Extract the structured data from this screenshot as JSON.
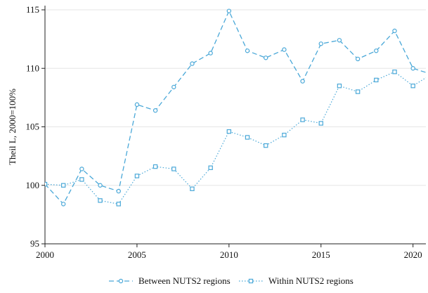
{
  "chart_data": {
    "type": "line",
    "title": "",
    "xlabel": "",
    "ylabel": "Theil L, 2000=100%",
    "xlim": [
      2000,
      2020.7
    ],
    "ylim": [
      95,
      115
    ],
    "x_ticks": [
      2000,
      2005,
      2010,
      2015,
      2020
    ],
    "x_tick_labels": [
      "2000",
      "2005",
      "2010",
      "2015",
      "2020"
    ],
    "y_ticks": [
      95,
      100,
      105,
      110,
      115
    ],
    "y_tick_labels": [
      "95",
      "100",
      "105",
      "110",
      "115"
    ],
    "grid": "horizontal",
    "legend_position": "bottom",
    "x": [
      2000,
      2001,
      2002,
      2003,
      2004,
      2005,
      2006,
      2007,
      2008,
      2009,
      2010,
      2011,
      2012,
      2013,
      2014,
      2015,
      2016,
      2017,
      2018,
      2019,
      2020,
      2021
    ],
    "series": [
      {
        "name": "Between NUTS2 regions",
        "values": [
          100.1,
          98.4,
          101.4,
          100.0,
          99.5,
          106.9,
          106.4,
          108.4,
          110.4,
          111.3,
          114.9,
          111.5,
          110.9,
          111.6,
          108.9,
          112.1,
          112.4,
          110.8,
          111.5,
          113.2,
          110.0,
          109.5
        ],
        "style": "dashed",
        "marker": "circle",
        "color": "#4aa8d8"
      },
      {
        "name": "Within NUTS2 regions",
        "values": [
          100.1,
          100.0,
          100.5,
          98.7,
          98.4,
          100.8,
          101.6,
          101.4,
          99.7,
          101.5,
          104.6,
          104.1,
          103.4,
          104.3,
          105.6,
          105.3,
          108.5,
          108.0,
          109.0,
          109.7,
          108.5,
          109.5
        ],
        "style": "dotted",
        "marker": "square",
        "color": "#4aa8d8"
      }
    ]
  }
}
